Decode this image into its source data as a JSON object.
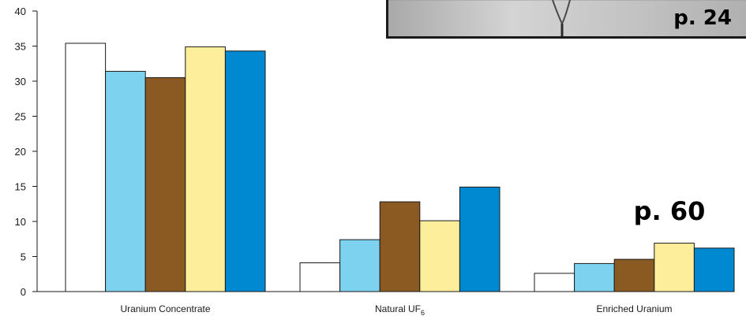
{
  "chart_data": {
    "type": "bar",
    "categories": [
      "Uranium Concentrate",
      "Natural UF6",
      "Enriched Uranium"
    ],
    "category_labels": [
      {
        "main": "Uranium Concentrate",
        "sub": ""
      },
      {
        "main": "Natural UF",
        "sub": "6"
      },
      {
        "main": "Enriched Uranium",
        "sub": ""
      }
    ],
    "series": [
      {
        "color": "#ffffff",
        "values": [
          35.4,
          4.1,
          2.6
        ]
      },
      {
        "color": "#7dd3ef",
        "values": [
          31.4,
          7.4,
          4.0
        ]
      },
      {
        "color": "#8b5a22",
        "values": [
          30.5,
          12.8,
          4.6
        ]
      },
      {
        "color": "#fdee9c",
        "values": [
          34.9,
          10.1,
          6.9
        ]
      },
      {
        "color": "#0089d0",
        "values": [
          34.3,
          14.9,
          6.2
        ]
      }
    ],
    "yticks": [
      "0",
      "5",
      "10",
      "15",
      "20",
      "25",
      "30",
      "35",
      "40"
    ],
    "ylim": [
      0,
      40
    ],
    "grid": false,
    "legend": "none"
  },
  "annotations": {
    "page_ref_top": "p. 24",
    "page_ref_mid": "p. 60"
  },
  "colors": {
    "photo_gray": "#c9c9c9",
    "bar_outline": "#1a1a1a"
  }
}
